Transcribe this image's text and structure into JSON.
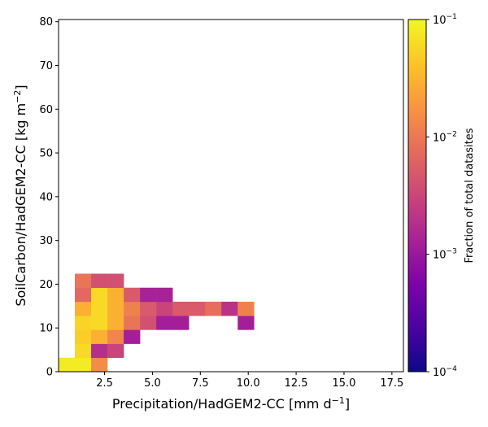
{
  "chart_data": {
    "type": "heatmap",
    "xlabel": "Precipitation/HadGEM2-CC [mm d",
    "xlabel_sup": "−1",
    "xlabel_end": "]",
    "ylabel": "SoilCarbon/HadGEM2-CC [kg m",
    "ylabel_sup": "−2",
    "ylabel_end": "]",
    "colorbar_label": "Fraction of total datasites",
    "colormap": "plasma",
    "color_scale": "log",
    "xlim": [
      0.1,
      18.1
    ],
    "ylim": [
      0,
      80.5
    ],
    "x_ticks": [
      2.5,
      5.0,
      7.5,
      10.0,
      12.5,
      15.0,
      17.5
    ],
    "x_tick_labels": [
      "2.5",
      "5.0",
      "7.5",
      "10.0",
      "12.5",
      "15.0",
      "17.5"
    ],
    "y_ticks": [
      0,
      10,
      20,
      30,
      40,
      50,
      60,
      70,
      80
    ],
    "y_tick_labels": [
      "0",
      "10",
      "20",
      "30",
      "40",
      "50",
      "60",
      "70",
      "80"
    ],
    "colorbar_range": [
      0.0001,
      0.1
    ],
    "colorbar_ticks": [
      0.0001,
      0.001,
      0.01,
      0.1
    ],
    "colorbar_tick_labels": [
      {
        "base": "10",
        "exp": "−4"
      },
      {
        "base": "10",
        "exp": "−3"
      },
      {
        "base": "10",
        "exp": "−2"
      },
      {
        "base": "10",
        "exp": "−1"
      }
    ],
    "bin_width_x": 0.85,
    "bin_height_y": 3.2,
    "cells": [
      {
        "x0": 0.1,
        "y0": 0.0,
        "value": 0.08
      },
      {
        "x0": 0.95,
        "y0": 0.0,
        "value": 0.08
      },
      {
        "x0": 1.8,
        "y0": 0.0,
        "value": 0.015
      },
      {
        "x0": 0.95,
        "y0": 3.2,
        "value": 0.06
      },
      {
        "x0": 1.8,
        "y0": 3.2,
        "value": 0.0018
      },
      {
        "x0": 2.65,
        "y0": 3.2,
        "value": 0.003
      },
      {
        "x0": 0.95,
        "y0": 6.4,
        "value": 0.05
      },
      {
        "x0": 1.8,
        "y0": 6.4,
        "value": 0.03
      },
      {
        "x0": 2.65,
        "y0": 6.4,
        "value": 0.013
      },
      {
        "x0": 3.5,
        "y0": 6.4,
        "value": 0.0012
      },
      {
        "x0": 0.95,
        "y0": 9.6,
        "value": 0.055
      },
      {
        "x0": 1.8,
        "y0": 9.6,
        "value": 0.06
      },
      {
        "x0": 2.65,
        "y0": 9.6,
        "value": 0.03
      },
      {
        "x0": 3.5,
        "y0": 9.6,
        "value": 0.009
      },
      {
        "x0": 4.35,
        "y0": 9.6,
        "value": 0.004
      },
      {
        "x0": 5.2,
        "y0": 9.6,
        "value": 0.0012
      },
      {
        "x0": 6.05,
        "y0": 9.6,
        "value": 0.0012
      },
      {
        "x0": 9.45,
        "y0": 9.6,
        "value": 0.0012
      },
      {
        "x0": 0.95,
        "y0": 12.8,
        "value": 0.03
      },
      {
        "x0": 1.8,
        "y0": 12.8,
        "value": 0.06
      },
      {
        "x0": 2.65,
        "y0": 12.8,
        "value": 0.03
      },
      {
        "x0": 3.5,
        "y0": 12.8,
        "value": 0.012
      },
      {
        "x0": 4.35,
        "y0": 12.8,
        "value": 0.005
      },
      {
        "x0": 5.2,
        "y0": 12.8,
        "value": 0.003
      },
      {
        "x0": 6.05,
        "y0": 12.8,
        "value": 0.005
      },
      {
        "x0": 6.9,
        "y0": 12.8,
        "value": 0.005
      },
      {
        "x0": 7.75,
        "y0": 12.8,
        "value": 0.008
      },
      {
        "x0": 8.6,
        "y0": 12.8,
        "value": 0.002
      },
      {
        "x0": 9.45,
        "y0": 12.8,
        "value": 0.012
      },
      {
        "x0": 0.95,
        "y0": 16.0,
        "value": 0.007
      },
      {
        "x0": 1.8,
        "y0": 16.0,
        "value": 0.06
      },
      {
        "x0": 2.65,
        "y0": 16.0,
        "value": 0.03
      },
      {
        "x0": 3.5,
        "y0": 16.0,
        "value": 0.005
      },
      {
        "x0": 4.35,
        "y0": 16.0,
        "value": 0.0013
      },
      {
        "x0": 5.2,
        "y0": 16.0,
        "value": 0.0013
      },
      {
        "x0": 0.95,
        "y0": 19.2,
        "value": 0.009
      },
      {
        "x0": 1.8,
        "y0": 19.2,
        "value": 0.004
      },
      {
        "x0": 2.65,
        "y0": 19.2,
        "value": 0.004
      }
    ]
  }
}
